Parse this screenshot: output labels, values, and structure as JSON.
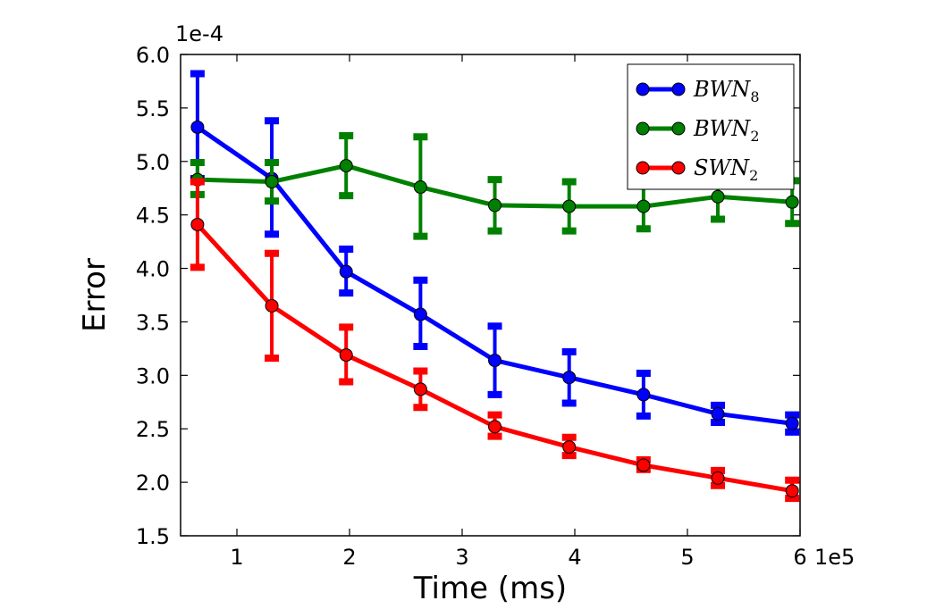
{
  "chart_data": {
    "type": "line",
    "xlabel": "Time (ms)",
    "ylabel": "Error",
    "x_multiplier_label": "1e5",
    "y_multiplier_label": "1e-4",
    "xlim": [
      0.5,
      6.0
    ],
    "ylim": [
      1.5,
      6.0
    ],
    "xticks": [
      1,
      2,
      3,
      4,
      5,
      6
    ],
    "xtick_labels": [
      "1",
      "2",
      "3",
      "4",
      "5",
      "6"
    ],
    "yticks": [
      1.5,
      2.0,
      2.5,
      3.0,
      3.5,
      4.0,
      4.5,
      5.0,
      5.5,
      6.0
    ],
    "ytick_labels": [
      "1.5",
      "2.0",
      "2.5",
      "3.0",
      "3.5",
      "4.0",
      "4.5",
      "5.0",
      "5.5",
      "6.0"
    ],
    "x": [
      0.65,
      1.31,
      1.97,
      2.63,
      3.29,
      3.95,
      4.61,
      5.27,
      5.93
    ],
    "grid": false,
    "legend_position": "top-right",
    "series": [
      {
        "name": "BWN",
        "subscript": "8",
        "color": "#0000ff",
        "values": [
          5.32,
          4.84,
          3.97,
          3.57,
          3.14,
          2.98,
          2.82,
          2.64,
          2.55
        ],
        "err_upper": [
          5.82,
          5.38,
          4.18,
          3.89,
          3.46,
          3.22,
          3.02,
          2.72,
          2.63
        ],
        "err_lower": [
          4.84,
          4.32,
          3.77,
          3.27,
          2.82,
          2.74,
          2.62,
          2.56,
          2.47
        ]
      },
      {
        "name": "BWN",
        "subscript": "2",
        "color": "#008000",
        "values": [
          4.83,
          4.81,
          4.96,
          4.76,
          4.59,
          4.58,
          4.58,
          4.67,
          4.62
        ],
        "err_upper": [
          4.99,
          4.99,
          5.24,
          5.23,
          4.83,
          4.81,
          4.79,
          4.83,
          4.82
        ],
        "err_lower": [
          4.69,
          4.63,
          4.68,
          4.3,
          4.35,
          4.35,
          4.37,
          4.46,
          4.42
        ]
      },
      {
        "name": "SWN",
        "subscript": "2",
        "color": "#ff0000",
        "values": [
          4.41,
          3.65,
          3.19,
          2.87,
          2.52,
          2.33,
          2.16,
          2.04,
          1.92
        ],
        "err_upper": [
          4.81,
          4.14,
          3.45,
          3.04,
          2.63,
          2.42,
          2.21,
          2.11,
          2.02
        ],
        "err_lower": [
          4.01,
          3.16,
          2.94,
          2.7,
          2.43,
          2.25,
          2.12,
          1.97,
          1.85
        ]
      }
    ]
  }
}
